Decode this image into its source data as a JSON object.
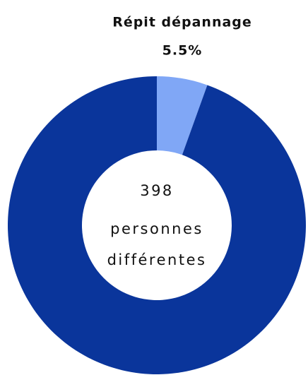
{
  "chart_data": {
    "type": "donut",
    "categories": [
      "Répit dépannage",
      null
    ],
    "values": [
      5.5,
      94.5
    ],
    "value_labels": [
      "5.5%",
      null
    ],
    "colors": [
      "#80a7f6",
      "#0a359b"
    ],
    "center_text": [
      "398",
      "personnes",
      "différentes"
    ]
  }
}
